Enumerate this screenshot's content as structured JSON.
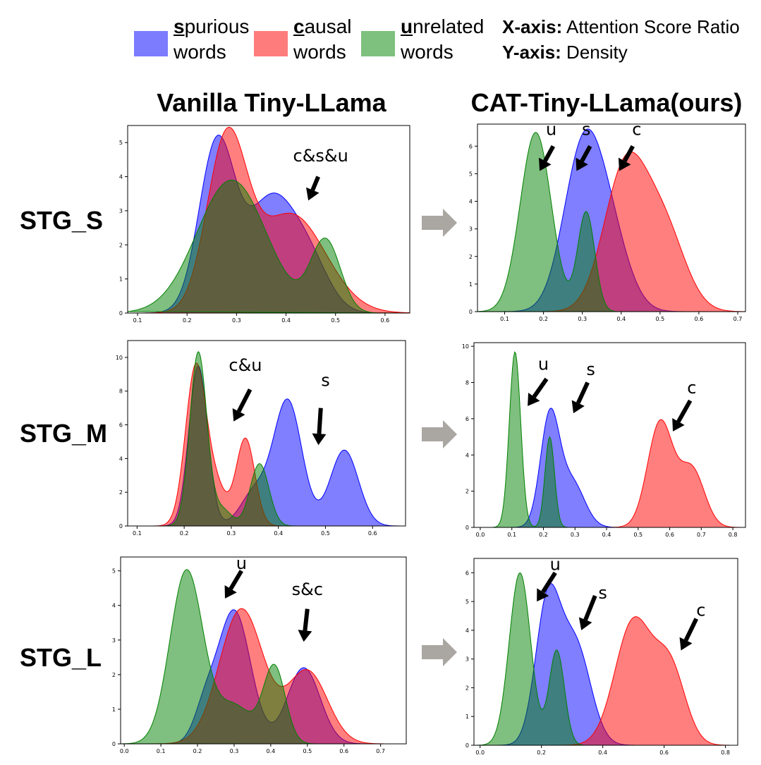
{
  "legend": {
    "spurious": {
      "first": "s",
      "rest": "purious",
      "line2": "words",
      "color": "#6e6eff"
    },
    "causal": {
      "first": "c",
      "rest": "ausal",
      "line2": "words",
      "color": "#ff6e6e"
    },
    "unrelated": {
      "first": "u",
      "rest": "nrelated",
      "line2": "words",
      "color": "#6cbe6c"
    }
  },
  "axes_info": {
    "x_key": "X-axis:",
    "x_val": " Attention Score Ratio",
    "y_key": "Y-axis:",
    "y_val": " Density"
  },
  "columns": {
    "left": "Vanilla Tiny-LLama",
    "right": "CAT-Tiny-LLama(ours)"
  },
  "rows": [
    "STG_S",
    "STG_M",
    "STG_L"
  ],
  "colors": {
    "spurious": "#0000ff",
    "causal": "#ff0000",
    "unrelated": "#008000"
  },
  "chart_data": [
    {
      "id": "stgs-vanilla",
      "type": "area",
      "xlim": [
        0.08,
        0.65
      ],
      "ylim": [
        0,
        5.5
      ],
      "xticks": [
        0.1,
        0.2,
        0.3,
        0.4,
        0.5,
        0.6
      ],
      "yticks": [
        0,
        1,
        2,
        3,
        4,
        5
      ],
      "xtick_labels": [
        "0.1",
        "0.2",
        "0.3",
        "0.4",
        "0.5",
        "0.6"
      ],
      "ytick_labels": [
        "0",
        "1",
        "2",
        "3",
        "4",
        "5"
      ],
      "series": [
        {
          "name": "spurious",
          "peaks": [
            [
              0.26,
              4.9,
              0.036
            ],
            [
              0.37,
              3.3,
              0.05
            ],
            [
              0.45,
              1.2,
              0.04
            ]
          ]
        },
        {
          "name": "causal",
          "peaks": [
            [
              0.28,
              4.9,
              0.04
            ],
            [
              0.41,
              2.9,
              0.07
            ]
          ]
        },
        {
          "name": "unrelated",
          "peaks": [
            [
              0.29,
              3.9,
              0.07
            ],
            [
              0.48,
              2.1,
              0.03
            ]
          ]
        }
      ],
      "annotations": [
        {
          "text": "c&s&u",
          "x": 0.47,
          "y": 4.45,
          "ax": 0.465,
          "ay": 4.0,
          "bx": 0.445,
          "by": 3.3
        }
      ]
    },
    {
      "id": "stgs-cat",
      "type": "area",
      "xlim": [
        0.03,
        0.72
      ],
      "ylim": [
        0,
        6.8
      ],
      "xticks": [
        0.1,
        0.2,
        0.3,
        0.4,
        0.5,
        0.6,
        0.7
      ],
      "yticks": [
        0,
        1,
        2,
        3,
        4,
        5,
        6
      ],
      "xtick_labels": [
        "0.1",
        "0.2",
        "0.3",
        "0.4",
        "0.5",
        "0.6",
        "0.7"
      ],
      "ytick_labels": [
        "0",
        "1",
        "2",
        "3",
        "4",
        "5",
        "6"
      ],
      "series": [
        {
          "name": "spurious",
          "peaks": [
            [
              0.3,
              5.5,
              0.05
            ],
            [
              0.37,
              2.5,
              0.05
            ]
          ]
        },
        {
          "name": "causal",
          "peaks": [
            [
              0.41,
              5.1,
              0.055
            ],
            [
              0.51,
              2.9,
              0.055
            ]
          ]
        },
        {
          "name": "unrelated",
          "peaks": [
            [
              0.18,
              6.5,
              0.04
            ],
            [
              0.31,
              3.6,
              0.022
            ]
          ]
        }
      ],
      "annotations": [
        {
          "text": "u",
          "x": 0.22,
          "y": 6.4,
          "ax": 0.225,
          "ay": 6.0,
          "bx": 0.19,
          "by": 5.1
        },
        {
          "text": "s",
          "x": 0.31,
          "y": 6.4,
          "ax": 0.32,
          "ay": 6.0,
          "bx": 0.285,
          "by": 5.1
        },
        {
          "text": "c",
          "x": 0.44,
          "y": 6.4,
          "ax": 0.43,
          "ay": 6.0,
          "bx": 0.395,
          "by": 5.1
        }
      ]
    },
    {
      "id": "stgm-vanilla",
      "type": "area",
      "xlim": [
        0.08,
        0.67
      ],
      "ylim": [
        0,
        11
      ],
      "xticks": [
        0.1,
        0.2,
        0.3,
        0.4,
        0.5,
        0.6
      ],
      "yticks": [
        0,
        2,
        4,
        6,
        8,
        10
      ],
      "xtick_labels": [
        "0.1",
        "0.2",
        "0.3",
        "0.4",
        "0.5",
        "0.6"
      ],
      "ytick_labels": [
        "0",
        "2",
        "4",
        "6",
        "8",
        "10"
      ],
      "series": [
        {
          "name": "spurious",
          "peaks": [
            [
              0.23,
              9.5,
              0.02
            ],
            [
              0.42,
              7.4,
              0.03
            ],
            [
              0.54,
              4.5,
              0.03
            ],
            [
              0.35,
              2.0,
              0.03
            ]
          ]
        },
        {
          "name": "causal",
          "peaks": [
            [
              0.225,
              9.5,
              0.022
            ],
            [
              0.33,
              5.2,
              0.02
            ],
            [
              0.27,
              2.0,
              0.02
            ]
          ]
        },
        {
          "name": "unrelated",
          "peaks": [
            [
              0.23,
              10.3,
              0.018
            ],
            [
              0.36,
              3.7,
              0.02
            ],
            [
              0.28,
              1.0,
              0.02
            ]
          ]
        }
      ],
      "annotations": [
        {
          "text": "c&u",
          "x": 0.33,
          "y": 9.2,
          "ax": 0.34,
          "ay": 8.1,
          "bx": 0.305,
          "by": 6.2
        },
        {
          "text": "s",
          "x": 0.5,
          "y": 8.3,
          "ax": 0.49,
          "ay": 7.0,
          "bx": 0.485,
          "by": 4.8
        }
      ]
    },
    {
      "id": "stgm-cat",
      "type": "area",
      "xlim": [
        -0.02,
        0.84
      ],
      "ylim": [
        0,
        10.2
      ],
      "xticks": [
        0.0,
        0.1,
        0.2,
        0.3,
        0.4,
        0.5,
        0.6,
        0.7,
        0.8
      ],
      "yticks": [
        0,
        2,
        4,
        6,
        8,
        10
      ],
      "xtick_labels": [
        "0.0",
        "0.1",
        "0.2",
        "0.3",
        "0.4",
        "0.5",
        "0.6",
        "0.7",
        "0.8"
      ],
      "ytick_labels": [
        "0",
        "2",
        "4",
        "6",
        "8",
        "10"
      ],
      "series": [
        {
          "name": "spurious",
          "peaks": [
            [
              0.22,
              6.0,
              0.03
            ],
            [
              0.29,
              2.5,
              0.04
            ]
          ]
        },
        {
          "name": "causal",
          "peaks": [
            [
              0.57,
              5.8,
              0.04
            ],
            [
              0.67,
              3.2,
              0.04
            ]
          ]
        },
        {
          "name": "unrelated",
          "peaks": [
            [
              0.11,
              9.7,
              0.018
            ],
            [
              0.22,
              5.0,
              0.015
            ]
          ]
        }
      ],
      "annotations": [
        {
          "text": "u",
          "x": 0.2,
          "y": 8.7,
          "ax": 0.21,
          "ay": 8.2,
          "bx": 0.15,
          "by": 6.7
        },
        {
          "text": "s",
          "x": 0.35,
          "y": 8.4,
          "ax": 0.34,
          "ay": 8.0,
          "bx": 0.295,
          "by": 6.3
        },
        {
          "text": "c",
          "x": 0.67,
          "y": 7.4,
          "ax": 0.665,
          "ay": 7.0,
          "bx": 0.61,
          "by": 5.3
        }
      ]
    },
    {
      "id": "stgl-vanilla",
      "type": "area",
      "xlim": [
        -0.01,
        0.77
      ],
      "ylim": [
        0,
        5.4
      ],
      "xticks": [
        0.0,
        0.1,
        0.2,
        0.3,
        0.4,
        0.5,
        0.6,
        0.7
      ],
      "yticks": [
        0,
        1,
        2,
        3,
        4,
        5
      ],
      "xtick_labels": [
        "0.0",
        "0.1",
        "0.2",
        "0.3",
        "0.4",
        "0.5",
        "0.6",
        "0.7"
      ],
      "ytick_labels": [
        "0",
        "1",
        "2",
        "3",
        "4",
        "5"
      ],
      "series": [
        {
          "name": "spurious",
          "peaks": [
            [
              0.3,
              3.85,
              0.045
            ],
            [
              0.49,
              2.2,
              0.045
            ],
            [
              0.22,
              0.9,
              0.03
            ]
          ]
        },
        {
          "name": "causal",
          "peaks": [
            [
              0.32,
              3.9,
              0.06
            ],
            [
              0.5,
              2.1,
              0.055
            ]
          ]
        },
        {
          "name": "unrelated",
          "peaks": [
            [
              0.17,
              5.0,
              0.045
            ],
            [
              0.41,
              2.2,
              0.03
            ],
            [
              0.3,
              1.1,
              0.05
            ]
          ]
        }
      ],
      "annotations": [
        {
          "text": "u",
          "x": 0.32,
          "y": 5.05,
          "ax": 0.32,
          "ay": 5.0,
          "bx": 0.275,
          "by": 4.2
        },
        {
          "text": "s&c",
          "x": 0.5,
          "y": 4.3,
          "ax": 0.5,
          "ay": 3.9,
          "bx": 0.49,
          "by": 2.95
        }
      ]
    },
    {
      "id": "stgl-cat",
      "type": "area",
      "xlim": [
        -0.02,
        0.84
      ],
      "ylim": [
        0,
        6.5
      ],
      "xticks": [
        0.0,
        0.2,
        0.4,
        0.6,
        0.8
      ],
      "yticks": [
        0,
        1,
        2,
        3,
        4,
        5,
        6
      ],
      "xtick_labels": [
        "0.0",
        "0.2",
        "0.4",
        "0.6",
        "0.8"
      ],
      "ytick_labels": [
        "0",
        "1",
        "2",
        "3",
        "4",
        "5",
        "6"
      ],
      "series": [
        {
          "name": "spurious",
          "peaks": [
            [
              0.22,
              4.8,
              0.04
            ],
            [
              0.31,
              3.5,
              0.05
            ]
          ]
        },
        {
          "name": "causal",
          "peaks": [
            [
              0.5,
              4.3,
              0.06
            ],
            [
              0.62,
              2.6,
              0.05
            ]
          ]
        },
        {
          "name": "unrelated",
          "peaks": [
            [
              0.13,
              6.0,
              0.035
            ],
            [
              0.25,
              3.3,
              0.025
            ]
          ]
        }
      ],
      "annotations": [
        {
          "text": "u",
          "x": 0.245,
          "y": 6.1,
          "ax": 0.245,
          "ay": 6.0,
          "bx": 0.185,
          "by": 5.0
        },
        {
          "text": "s",
          "x": 0.4,
          "y": 5.1,
          "ax": 0.375,
          "ay": 5.2,
          "bx": 0.33,
          "by": 4.0
        },
        {
          "text": "c",
          "x": 0.72,
          "y": 4.5,
          "ax": 0.705,
          "ay": 4.4,
          "bx": 0.655,
          "by": 3.3
        }
      ]
    }
  ]
}
